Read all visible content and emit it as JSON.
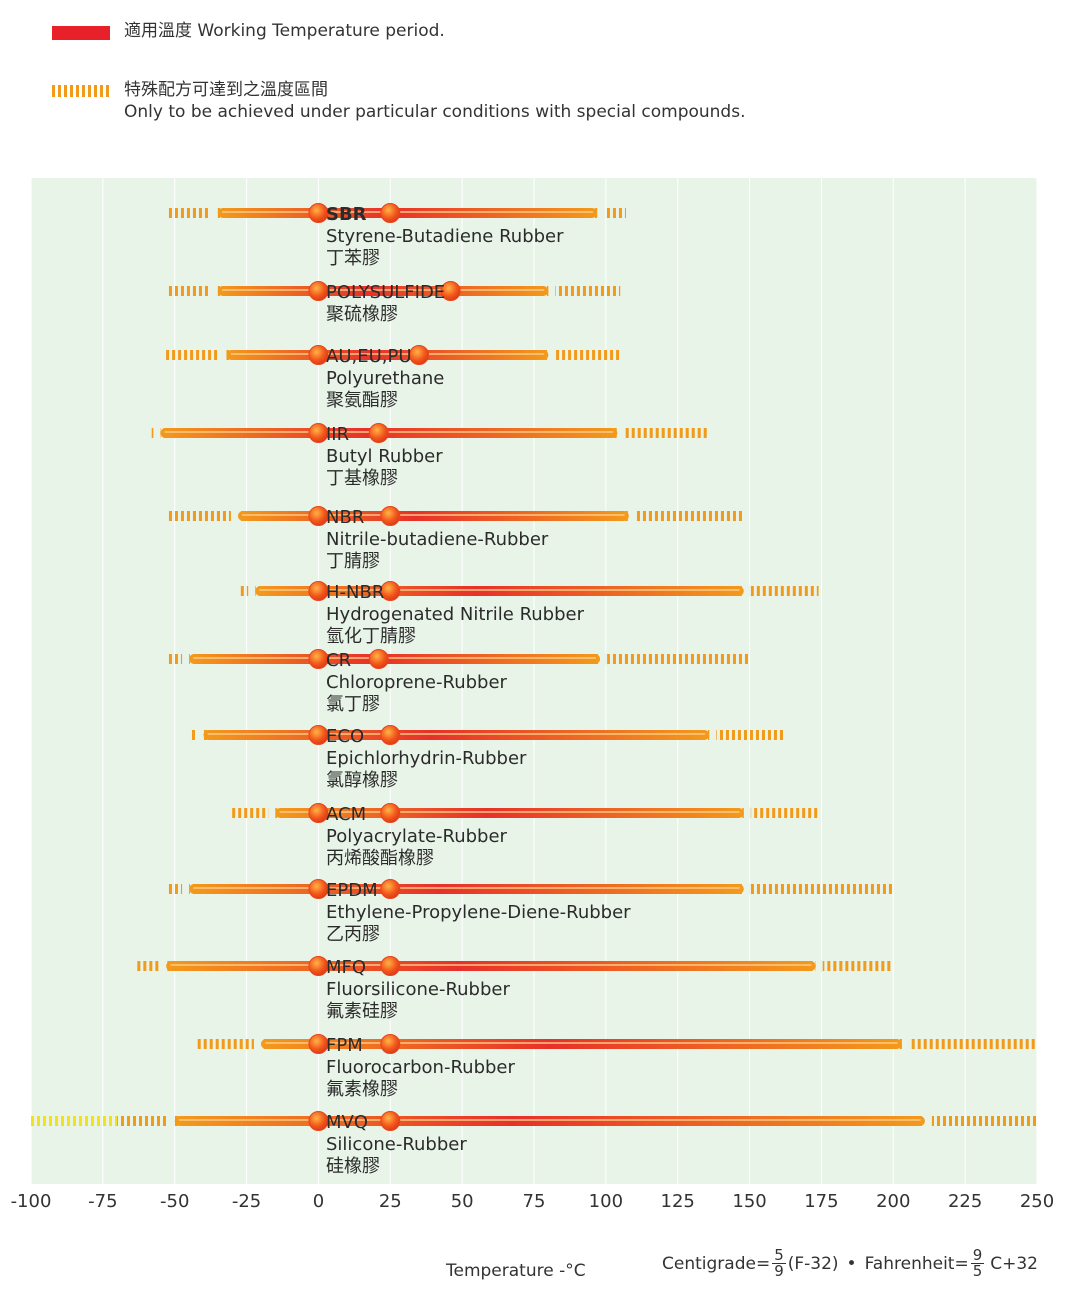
{
  "legend": {
    "solid_label": "適用溫度 Working Temperature period.",
    "dashed_label_zh": "特殊配方可達到之溫度區間",
    "dashed_label_en": "Only to be achieved under particular conditions with special compounds."
  },
  "footer": {
    "axis_title": "Temperature -°C",
    "formula_c_prefix": "Centigrade=",
    "formula_c_num": "5",
    "formula_c_den": "9",
    "formula_c_suffix": "(F-32)",
    "bullet": "•",
    "formula_f_prefix": "Fahrenheit=",
    "formula_f_num": "9",
    "formula_f_den": "5",
    "formula_f_suffix": "C+32"
  },
  "colors": {
    "plot_bg": "#e9f4e9",
    "working": "#e8202a",
    "special": "#f29a1a",
    "marker": "#f26a1b",
    "extreme": "#f2e21a"
  },
  "chart_data": {
    "type": "range",
    "title": "",
    "xlabel": "Temperature -°C",
    "ylabel": "",
    "xlim": [
      -100,
      250
    ],
    "xticks": [
      -100,
      -75,
      -50,
      -25,
      0,
      25,
      50,
      75,
      100,
      125,
      150,
      175,
      200,
      225,
      250
    ],
    "grid": true,
    "markers": [
      0,
      25
    ],
    "series": [
      {
        "code": "SBR",
        "en": "Styrene-Butadiene Rubber",
        "zh": "丁苯膠",
        "working": [
          -35,
          97
        ],
        "special": [
          -52,
          107
        ],
        "marker_right": 25
      },
      {
        "code": "POLYSULFIDE",
        "en": "",
        "zh": "聚硫橡膠",
        "working": [
          -35,
          80
        ],
        "special": [
          -52,
          105
        ],
        "marker_right": 46
      },
      {
        "code": "AU,EU,PU",
        "en": "Polyurethane",
        "zh": "聚氨酯膠",
        "working": [
          -32,
          80
        ],
        "special": [
          -53,
          105
        ],
        "marker_right": 35
      },
      {
        "code": "IIR",
        "en": "Butyl Rubber",
        "zh": "丁基橡膠",
        "working": [
          -55,
          104
        ],
        "special": [
          -58,
          136
        ],
        "marker_right": 21
      },
      {
        "code": "NBR",
        "en": "Nitrile-butadiene-Rubber",
        "zh": "丁腈膠",
        "working": [
          -28,
          108
        ],
        "special": [
          -52,
          148
        ],
        "marker_right": 25
      },
      {
        "code": "H-NBR",
        "en": "Hydrogenated Nitrile Rubber",
        "zh": "氫化丁腈膠",
        "working": [
          -22,
          148
        ],
        "special": [
          -27,
          174
        ],
        "marker_right": 25
      },
      {
        "code": "CR",
        "en": "Chloroprene-Rubber",
        "zh": "氯丁膠",
        "working": [
          -45,
          98
        ],
        "special": [
          -52,
          150
        ],
        "marker_right": 21
      },
      {
        "code": "ECO",
        "en": "Epichlorhydrin-Rubber",
        "zh": "氯醇橡膠",
        "working": [
          -40,
          136
        ],
        "special": [
          -44,
          162
        ],
        "marker_right": 25
      },
      {
        "code": "ACM",
        "en": "Polyacrylate-Rubber",
        "zh": "丙烯酸酯橡膠",
        "working": [
          -15,
          148
        ],
        "special": [
          -30,
          174
        ],
        "marker_right": 25
      },
      {
        "code": "EPDM",
        "en": "Ethylene-Propylene-Diene-Rubber",
        "zh": "乙丙膠",
        "working": [
          -45,
          148
        ],
        "special": [
          -52,
          200
        ],
        "marker_right": 25
      },
      {
        "code": "MFQ",
        "en": "Fluorsilicone-Rubber",
        "zh": "氟素硅膠",
        "working": [
          -53,
          173
        ],
        "special": [
          -63,
          200
        ],
        "marker_right": 25
      },
      {
        "code": "FPM",
        "en": "Fluorocarbon-Rubber",
        "zh": "氟素橡膠",
        "working": [
          -20,
          203
        ],
        "special": [
          -42,
          250
        ],
        "marker_right": 25
      },
      {
        "code": "MVQ",
        "en": "Silicone-Rubber",
        "zh": "硅橡膠",
        "working": [
          -50,
          211
        ],
        "special": [
          -100,
          250
        ],
        "extreme_low": [
          -100,
          -70
        ],
        "marker_right": 25
      }
    ]
  }
}
